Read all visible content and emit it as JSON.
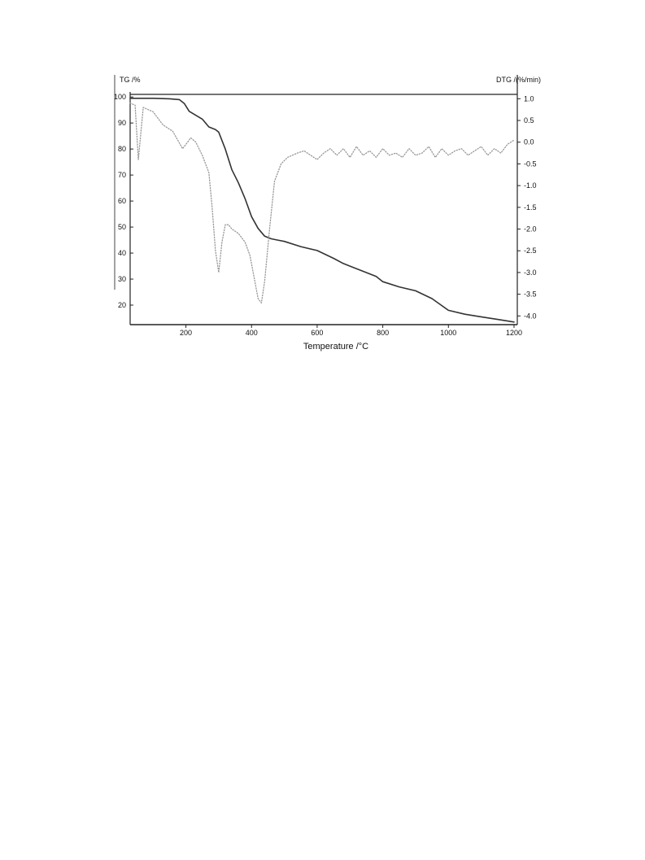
{
  "chart_data": {
    "type": "line",
    "title": "",
    "xlabel": "Temperature /°C",
    "ylabel_left": "TG /%",
    "ylabel_right": "DTG /(%/min)",
    "xlim": [
      30,
      1210
    ],
    "ylim_left": [
      12.5,
      101
    ],
    "ylim_right": [
      -4.2,
      1.1
    ],
    "x_ticks": [
      "200",
      "400",
      "600",
      "800",
      "1000",
      "1200"
    ],
    "x_tick_values": [
      200,
      400,
      600,
      800,
      1000,
      1200
    ],
    "y_left_ticks": [
      "100",
      "90",
      "80",
      "70",
      "60",
      "50",
      "40",
      "30",
      "20"
    ],
    "y_left_tick_values": [
      100,
      90,
      80,
      70,
      60,
      50,
      40,
      30,
      20
    ],
    "y_right_ticks": [
      "1.0",
      "0.5",
      "0.0",
      "-0.5",
      "-1.0",
      "-1.5",
      "-2.0",
      "-2.5",
      "-3.0",
      "-3.5",
      "-4.0"
    ],
    "y_right_tick_values": [
      1.0,
      0.5,
      0.0,
      -0.5,
      -1.0,
      -1.5,
      -2.0,
      -2.5,
      -3.0,
      -3.5,
      -4.0
    ],
    "grid": false,
    "legend": "none",
    "series": [
      {
        "axis": "left",
        "style": "solid",
        "color": "#333333",
        "x": [
          30,
          100,
          150,
          180,
          195,
          210,
          250,
          270,
          290,
          300,
          320,
          340,
          360,
          380,
          400,
          420,
          440,
          460,
          480,
          500,
          550,
          600,
          650,
          680,
          700,
          750,
          780,
          800,
          850,
          900,
          950,
          1000,
          1050,
          1100,
          1150,
          1200
        ],
        "values": [
          99.5,
          99.5,
          99.3,
          99.0,
          97.5,
          94.5,
          91.5,
          88.5,
          87.5,
          86.5,
          80.0,
          72.0,
          67.0,
          61.0,
          54.0,
          49.5,
          46.5,
          45.5,
          45.0,
          44.5,
          42.5,
          41.0,
          38.0,
          36.0,
          35.0,
          32.5,
          31.0,
          29.0,
          27.0,
          25.5,
          22.5,
          18.0,
          16.5,
          15.5,
          14.5,
          13.5
        ]
      },
      {
        "axis": "right",
        "style": "dotted",
        "color": "#999999",
        "x": [
          30,
          45,
          55,
          70,
          100,
          130,
          160,
          190,
          200,
          215,
          230,
          250,
          270,
          280,
          290,
          300,
          310,
          320,
          330,
          340,
          360,
          380,
          395,
          410,
          420,
          430,
          440,
          455,
          470,
          490,
          510,
          540,
          560,
          580,
          600,
          620,
          640,
          660,
          680,
          700,
          720,
          740,
          760,
          780,
          800,
          820,
          840,
          860,
          880,
          900,
          920,
          940,
          960,
          980,
          1000,
          1020,
          1040,
          1060,
          1080,
          1100,
          1120,
          1140,
          1160,
          1180,
          1200
        ],
        "values": [
          0.9,
          0.85,
          -0.4,
          0.8,
          0.7,
          0.4,
          0.25,
          -0.15,
          -0.05,
          0.1,
          0.0,
          -0.3,
          -0.7,
          -1.5,
          -2.5,
          -3.0,
          -2.3,
          -1.9,
          -1.9,
          -2.0,
          -2.1,
          -2.3,
          -2.6,
          -3.2,
          -3.6,
          -3.7,
          -3.2,
          -2.0,
          -0.9,
          -0.5,
          -0.35,
          -0.25,
          -0.2,
          -0.3,
          -0.4,
          -0.25,
          -0.15,
          -0.3,
          -0.15,
          -0.35,
          -0.1,
          -0.3,
          -0.2,
          -0.35,
          -0.15,
          -0.3,
          -0.25,
          -0.35,
          -0.15,
          -0.3,
          -0.25,
          -0.1,
          -0.35,
          -0.15,
          -0.3,
          -0.2,
          -0.15,
          -0.3,
          -0.2,
          -0.1,
          -0.3,
          -0.15,
          -0.25,
          -0.05,
          0.05
        ]
      }
    ]
  }
}
